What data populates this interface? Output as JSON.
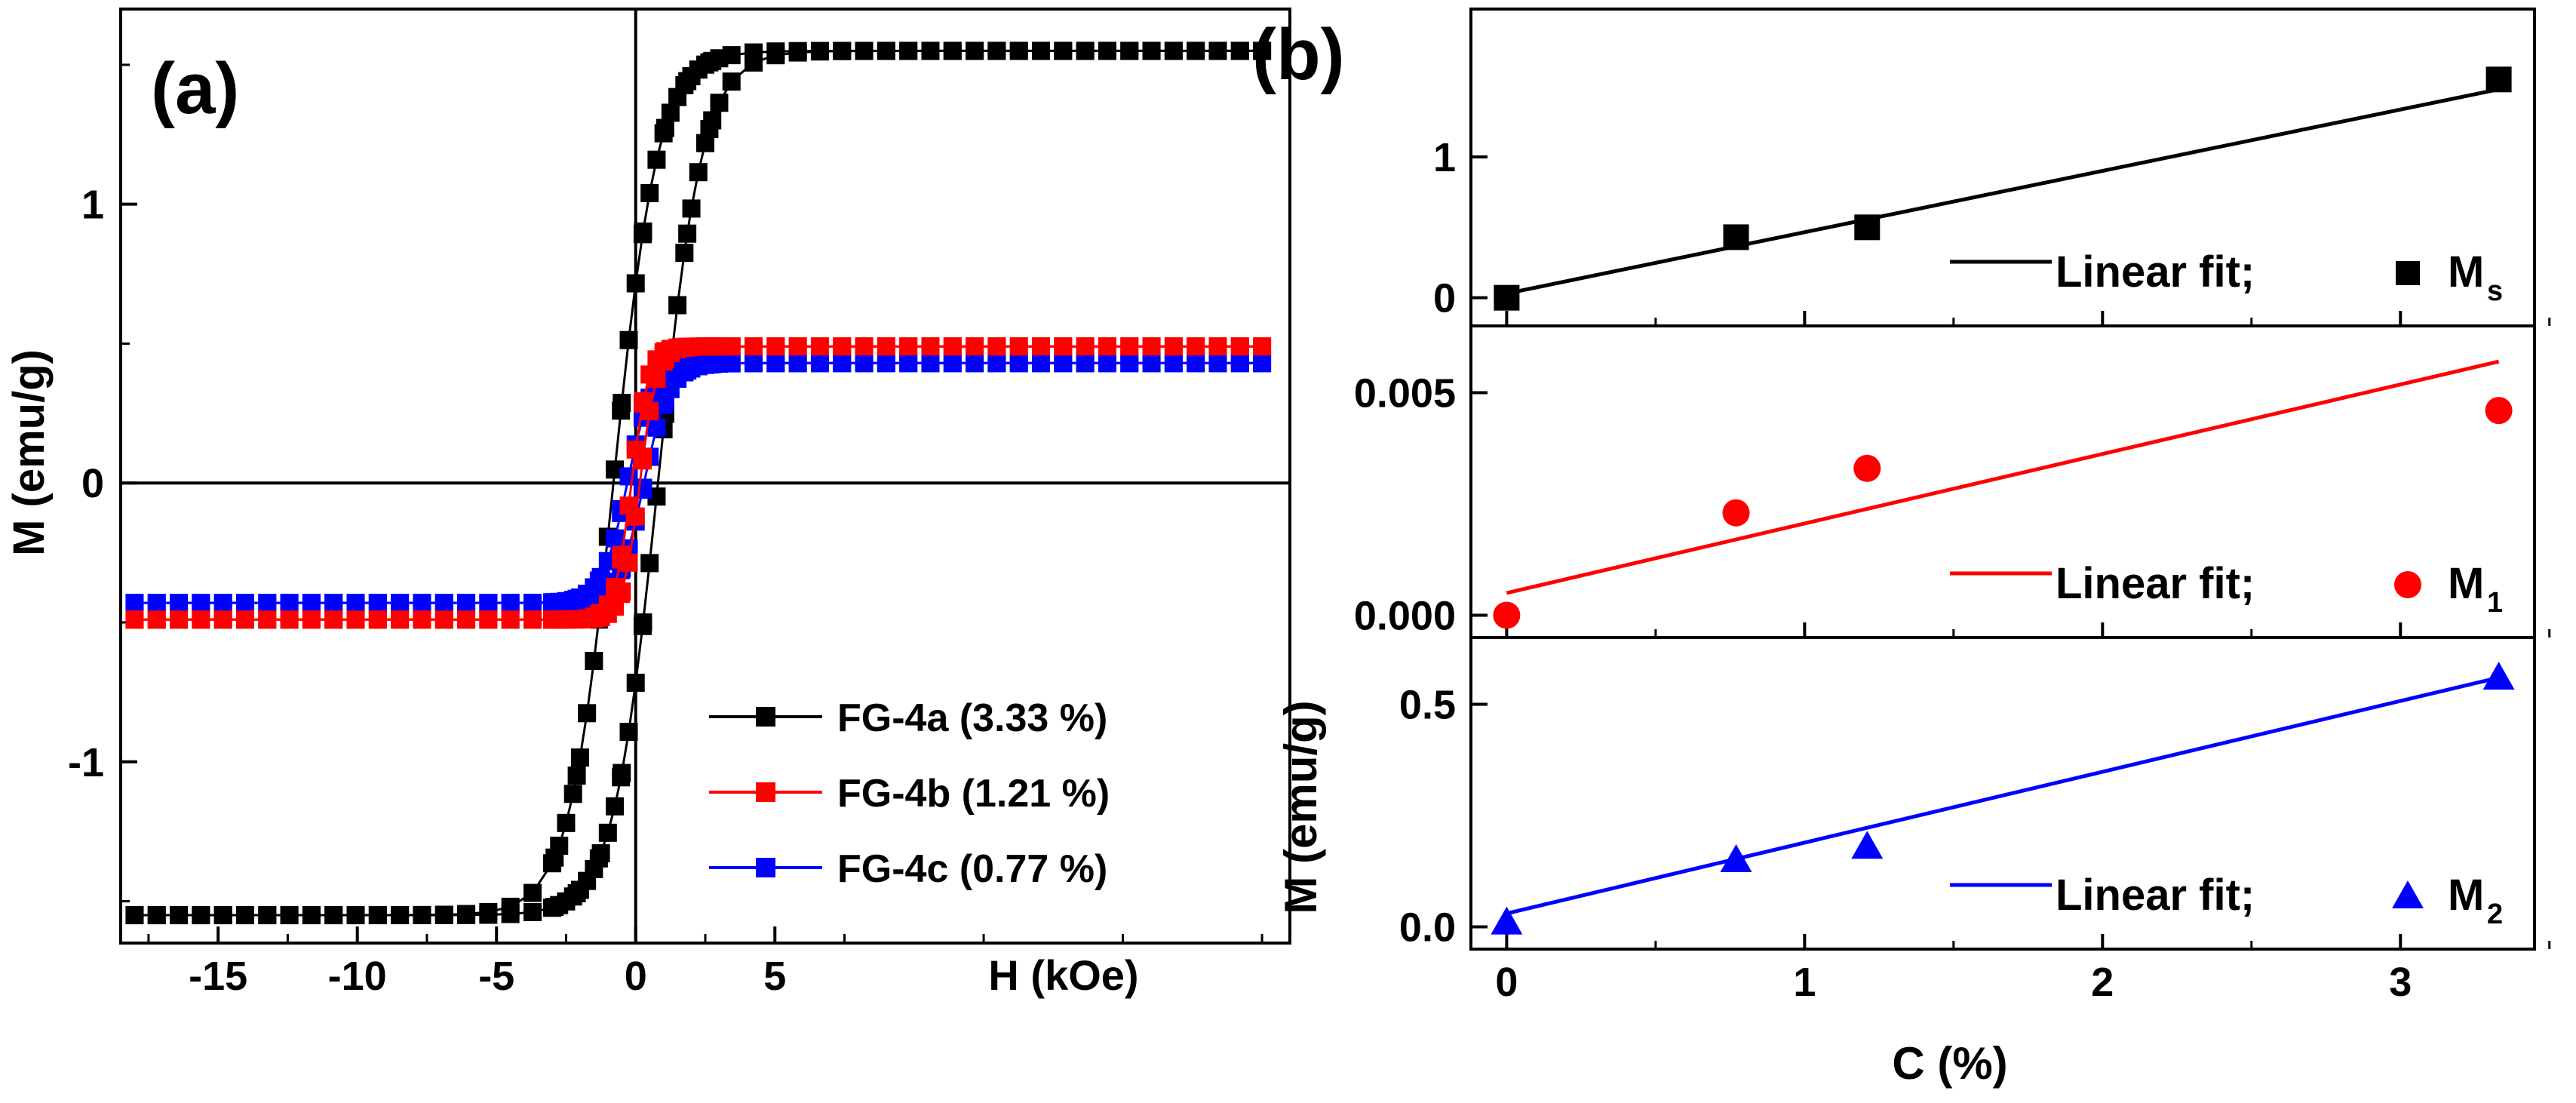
{
  "chart_data": [
    {
      "panel": "a",
      "type": "line",
      "panel_label": "(a)",
      "xlabel": "H (kOe)",
      "ylabel": "M (emu/g)",
      "xlim": [
        -18.5,
        23.5
      ],
      "ylim": [
        -1.65,
        1.7
      ],
      "xticks": [
        -15,
        -10,
        -5,
        0,
        5
      ],
      "yticks": [
        -1,
        0,
        1
      ],
      "zero_lines": true,
      "legend_position": "bottom-right",
      "colors": {
        "FG-4a": "#000000",
        "FG-4b": "#ff0000",
        "FG-4c": "#0000ff"
      },
      "series": [
        {
          "name": "FG-4a (3.33 %)",
          "key": "FG-4a",
          "Ms": 1.55,
          "Hc": 0.8,
          "a": 1.6
        },
        {
          "name": "FG-4b (1.21 %)",
          "key": "FG-4b",
          "Ms": 0.49,
          "Hc": 0.15,
          "a": 0.6
        },
        {
          "name": "FG-4c (0.77 %)",
          "key": "FG-4c",
          "Ms": 0.43,
          "Hc": 0.3,
          "a": 0.9
        }
      ]
    },
    {
      "panel": "b",
      "type": "scatter",
      "panel_label": "(b)",
      "xlabel": "C (%)",
      "ylabel": "M (emu/g)",
      "xlim": [
        -0.12,
        3.45
      ],
      "xticks": [
        0,
        1,
        2,
        3
      ],
      "subplots": [
        {
          "name": "Ms",
          "ylim": [
            -0.2,
            2.05
          ],
          "yticks": [
            0,
            1
          ],
          "color": "#000000",
          "marker": "square",
          "x": [
            0,
            0.77,
            1.21,
            3.33
          ],
          "y": [
            0.0,
            0.43,
            0.5,
            1.55
          ],
          "fit": [
            0.03,
            1.48
          ],
          "legend_fit": "Linear fit;",
          "legend_symbol": "M",
          "legend_sub": "s"
        },
        {
          "name": "M1",
          "ylim": [
            -0.0005,
            0.0065
          ],
          "yticks": [
            0.0,
            0.005
          ],
          "ytick_labels": [
            "0.000",
            "0.005"
          ],
          "color": "#ff0000",
          "marker": "circle",
          "x": [
            0,
            0.77,
            1.21,
            3.33
          ],
          "y": [
            0.0,
            0.0023,
            0.0033,
            0.0046
          ],
          "fit": [
            0.0005,
            0.0057
          ],
          "legend_fit": "Linear fit;",
          "legend_symbol": "M",
          "legend_sub": "1"
        },
        {
          "name": "M2",
          "ylim": [
            -0.05,
            0.65
          ],
          "yticks": [
            0.0,
            0.5
          ],
          "ytick_labels": [
            "0.0",
            "0.5"
          ],
          "color": "#0000ff",
          "marker": "triangle",
          "x": [
            0,
            0.77,
            1.21,
            3.33
          ],
          "y": [
            0.01,
            0.15,
            0.18,
            0.56
          ],
          "fit": [
            0.03,
            0.56
          ],
          "legend_fit": "Linear fit;",
          "legend_symbol": "M",
          "legend_sub": "2"
        }
      ]
    }
  ]
}
